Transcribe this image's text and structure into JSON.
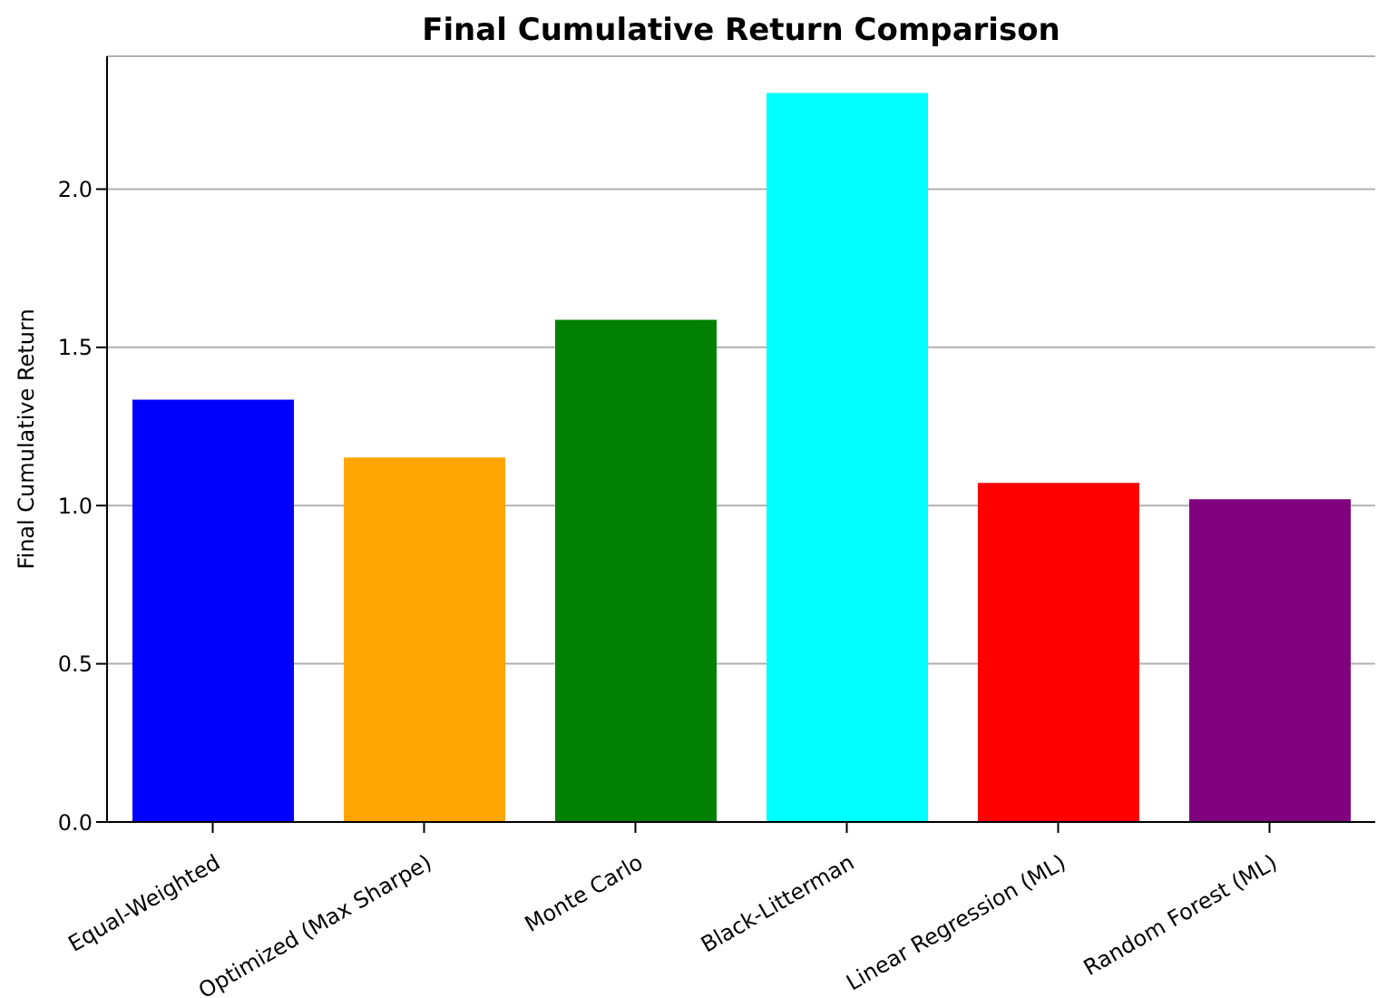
{
  "chart_data": {
    "type": "bar",
    "title": "Final Cumulative Return Comparison",
    "ylabel": "Final Cumulative Return",
    "categories": [
      "Equal-Weighted",
      "Optimized (Max Sharpe)",
      "Monte Carlo",
      "Black-Litterman",
      "Linear Regression (ML)",
      "Random Forest (ML)"
    ],
    "values": [
      1.335,
      1.152,
      1.587,
      2.304,
      1.072,
      1.02
    ],
    "colors": [
      "#0000ff",
      "#ffa500",
      "#008000",
      "#00ffff",
      "#ff0000",
      "#800080"
    ],
    "ylim": [
      0,
      2.42
    ],
    "yticks": [
      {
        "value": 0,
        "label": "0.0"
      },
      0.5,
      {
        "value": 1,
        "label": "1.0"
      },
      1.5,
      {
        "value": 2,
        "label": "2.0"
      }
    ],
    "grid": "y"
  }
}
